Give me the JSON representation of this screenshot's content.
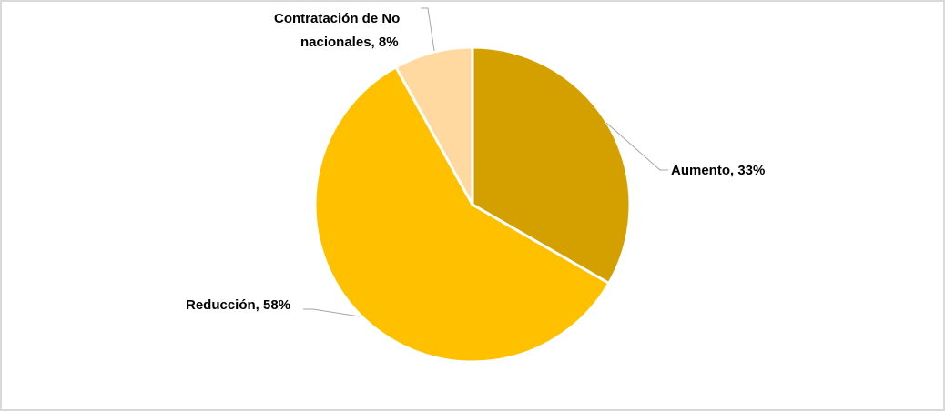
{
  "chart_data": {
    "type": "pie",
    "title": "",
    "categories": [
      "Aumento",
      "Reducción",
      "Contratación de No nacionales"
    ],
    "values": [
      33,
      58,
      8
    ],
    "unit": "%",
    "colors": [
      "#D4A000",
      "#FFC000",
      "#FFD9A0"
    ],
    "start_angle": "12 o'clock",
    "direction": "clockwise",
    "legend": "none",
    "data_labels": [
      {
        "line1": "Aumento, 33%"
      },
      {
        "line1": "Reducción, 58%"
      },
      {
        "line1": "Contratación de No",
        "line2": "nacionales, 8%"
      }
    ]
  },
  "labels": {
    "aumento": "Aumento, 33%",
    "reduccion": "Reducción, 58%",
    "contratacion_line1": "Contratación de No",
    "contratacion_line2": "nacionales, 8%"
  },
  "colors": {
    "aumento": "#D4A000",
    "reduccion": "#FFC000",
    "contratacion": "#FFD9A0",
    "border": "#D9D9D9",
    "leader": "#A6A6A6"
  }
}
